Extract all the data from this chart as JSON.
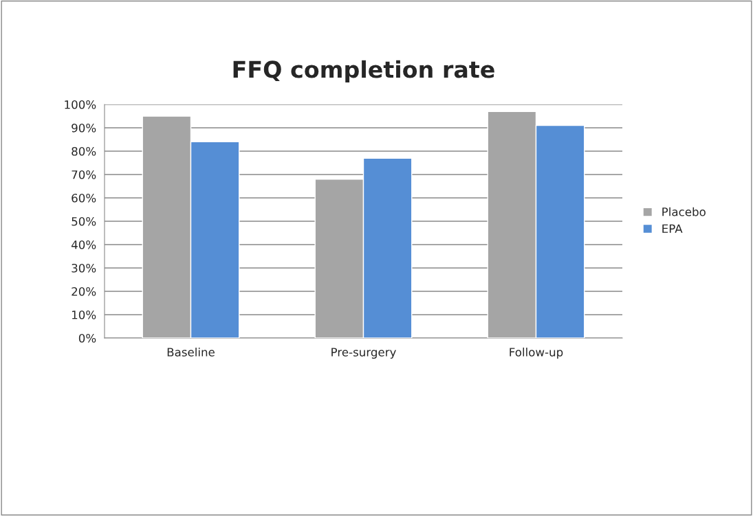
{
  "chart_data": {
    "type": "bar",
    "title": "FFQ completion rate",
    "categories": [
      "Baseline",
      "Pre-surgery",
      "Follow-up"
    ],
    "series": [
      {
        "name": "Placebo",
        "color": "#a5a5a5",
        "values": [
          95,
          68,
          97
        ]
      },
      {
        "name": "EPA",
        "color": "#558ed5",
        "values": [
          84,
          77,
          91
        ]
      }
    ],
    "ylim": [
      0,
      100
    ],
    "yticks": [
      {
        "value": 0,
        "label": "0%"
      },
      {
        "value": 10,
        "label": "10%"
      },
      {
        "value": 20,
        "label": "20%"
      },
      {
        "value": 30,
        "label": "30%"
      },
      {
        "value": 40,
        "label": "40%"
      },
      {
        "value": 50,
        "label": "50%"
      },
      {
        "value": 60,
        "label": "60%"
      },
      {
        "value": 70,
        "label": "70%"
      },
      {
        "value": 80,
        "label": "80%"
      },
      {
        "value": 90,
        "label": "90%"
      },
      {
        "value": 100,
        "label": "100%"
      }
    ],
    "grid": "y",
    "legend": "right"
  }
}
